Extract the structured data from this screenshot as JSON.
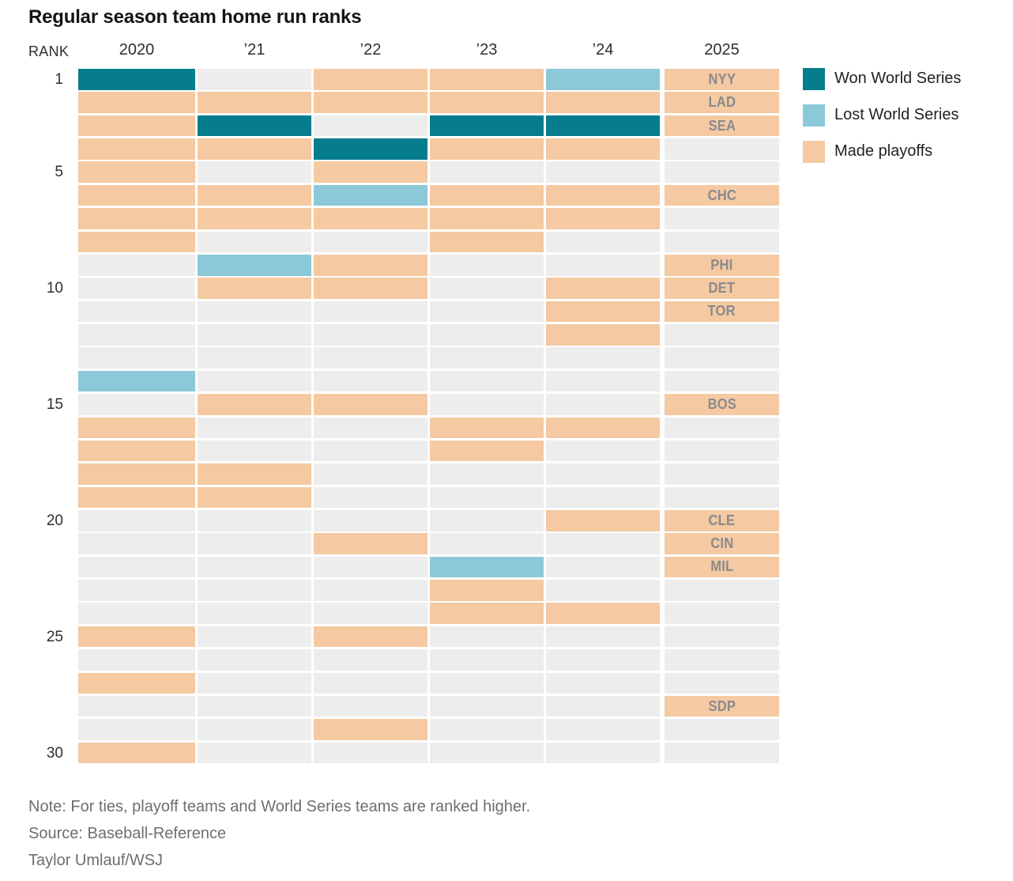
{
  "title": "Regular season team home run ranks",
  "axis": {
    "rank_label": "RANK",
    "years": [
      "2020",
      "’21",
      "’22",
      "’23",
      "’24",
      "2025"
    ],
    "rank_ticks": [
      1,
      5,
      10,
      15,
      20,
      25,
      30
    ]
  },
  "legend": [
    {
      "key": "won",
      "label": "Won World Series",
      "color": "#067d8d"
    },
    {
      "key": "lost",
      "label": "Lost World Series",
      "color": "#8bc9d8"
    },
    {
      "key": "playoffs",
      "label": "Made playoffs",
      "color": "#f5c9a1"
    }
  ],
  "colors": {
    "none_cell": "#ededee",
    "team_label": "#8a8a8e"
  },
  "footer": {
    "note": "Note: For ties, playoff teams and World Series teams are ranked higher.",
    "source": "Source: Baseball-Reference",
    "credit": "Taylor Umlauf/WSJ"
  },
  "chart_data": {
    "type": "heatmap",
    "title": "Regular season team home run ranks",
    "columns": [
      "2020",
      "’21",
      "’22",
      "’23",
      "’24",
      "2025"
    ],
    "cell_codes": {
      "W": "Won World Series",
      "L": "Lost World Series",
      "P": "Made playoffs",
      "-": "none"
    },
    "rank_axis": {
      "label": "RANK",
      "ticks": [
        1,
        5,
        10,
        15,
        20,
        25,
        30
      ],
      "range": [
        1,
        30
      ]
    },
    "legend_position": "right",
    "rows": [
      {
        "rank": 1,
        "cells": [
          "W",
          "-",
          "P",
          "P",
          "L",
          "P"
        ],
        "team_2025": "NYY"
      },
      {
        "rank": 2,
        "cells": [
          "P",
          "P",
          "P",
          "P",
          "P",
          "P"
        ],
        "team_2025": "LAD"
      },
      {
        "rank": 3,
        "cells": [
          "P",
          "W",
          "-",
          "W",
          "W",
          "P"
        ],
        "team_2025": "SEA"
      },
      {
        "rank": 4,
        "cells": [
          "P",
          "P",
          "W",
          "P",
          "P",
          "-"
        ],
        "team_2025": ""
      },
      {
        "rank": 5,
        "cells": [
          "P",
          "-",
          "P",
          "-",
          "-",
          "-"
        ],
        "team_2025": ""
      },
      {
        "rank": 6,
        "cells": [
          "P",
          "P",
          "L",
          "P",
          "P",
          "P"
        ],
        "team_2025": "CHC"
      },
      {
        "rank": 7,
        "cells": [
          "P",
          "P",
          "P",
          "P",
          "P",
          "-"
        ],
        "team_2025": ""
      },
      {
        "rank": 8,
        "cells": [
          "P",
          "-",
          "-",
          "P",
          "-",
          "-"
        ],
        "team_2025": ""
      },
      {
        "rank": 9,
        "cells": [
          "-",
          "L",
          "P",
          "-",
          "-",
          "P"
        ],
        "team_2025": "PHI"
      },
      {
        "rank": 10,
        "cells": [
          "-",
          "P",
          "P",
          "-",
          "P",
          "P"
        ],
        "team_2025": "DET"
      },
      {
        "rank": 11,
        "cells": [
          "-",
          "-",
          "-",
          "-",
          "P",
          "P"
        ],
        "team_2025": "TOR"
      },
      {
        "rank": 12,
        "cells": [
          "-",
          "-",
          "-",
          "-",
          "P",
          "-"
        ],
        "team_2025": ""
      },
      {
        "rank": 13,
        "cells": [
          "-",
          "-",
          "-",
          "-",
          "-",
          "-"
        ],
        "team_2025": ""
      },
      {
        "rank": 14,
        "cells": [
          "L",
          "-",
          "-",
          "-",
          "-",
          "-"
        ],
        "team_2025": ""
      },
      {
        "rank": 15,
        "cells": [
          "-",
          "P",
          "P",
          "-",
          "-",
          "P"
        ],
        "team_2025": "BOS"
      },
      {
        "rank": 16,
        "cells": [
          "P",
          "-",
          "-",
          "P",
          "P",
          "-"
        ],
        "team_2025": ""
      },
      {
        "rank": 17,
        "cells": [
          "P",
          "-",
          "-",
          "P",
          "-",
          "-"
        ],
        "team_2025": ""
      },
      {
        "rank": 18,
        "cells": [
          "P",
          "P",
          "-",
          "-",
          "-",
          "-"
        ],
        "team_2025": ""
      },
      {
        "rank": 19,
        "cells": [
          "P",
          "P",
          "-",
          "-",
          "-",
          "-"
        ],
        "team_2025": ""
      },
      {
        "rank": 20,
        "cells": [
          "-",
          "-",
          "-",
          "-",
          "P",
          "P"
        ],
        "team_2025": "CLE"
      },
      {
        "rank": 21,
        "cells": [
          "-",
          "-",
          "P",
          "-",
          "-",
          "P"
        ],
        "team_2025": "CIN"
      },
      {
        "rank": 22,
        "cells": [
          "-",
          "-",
          "-",
          "L",
          "-",
          "P"
        ],
        "team_2025": "MIL"
      },
      {
        "rank": 23,
        "cells": [
          "-",
          "-",
          "-",
          "P",
          "-",
          "-"
        ],
        "team_2025": ""
      },
      {
        "rank": 24,
        "cells": [
          "-",
          "-",
          "-",
          "P",
          "P",
          "-"
        ],
        "team_2025": ""
      },
      {
        "rank": 25,
        "cells": [
          "P",
          "-",
          "P",
          "-",
          "-",
          "-"
        ],
        "team_2025": ""
      },
      {
        "rank": 26,
        "cells": [
          "-",
          "-",
          "-",
          "-",
          "-",
          "-"
        ],
        "team_2025": ""
      },
      {
        "rank": 27,
        "cells": [
          "P",
          "-",
          "-",
          "-",
          "-",
          "-"
        ],
        "team_2025": ""
      },
      {
        "rank": 28,
        "cells": [
          "-",
          "-",
          "-",
          "-",
          "-",
          "P"
        ],
        "team_2025": "SDP"
      },
      {
        "rank": 29,
        "cells": [
          "-",
          "-",
          "P",
          "-",
          "-",
          "-"
        ],
        "team_2025": ""
      },
      {
        "rank": 30,
        "cells": [
          "P",
          "-",
          "-",
          "-",
          "-",
          "-"
        ],
        "team_2025": ""
      }
    ]
  }
}
